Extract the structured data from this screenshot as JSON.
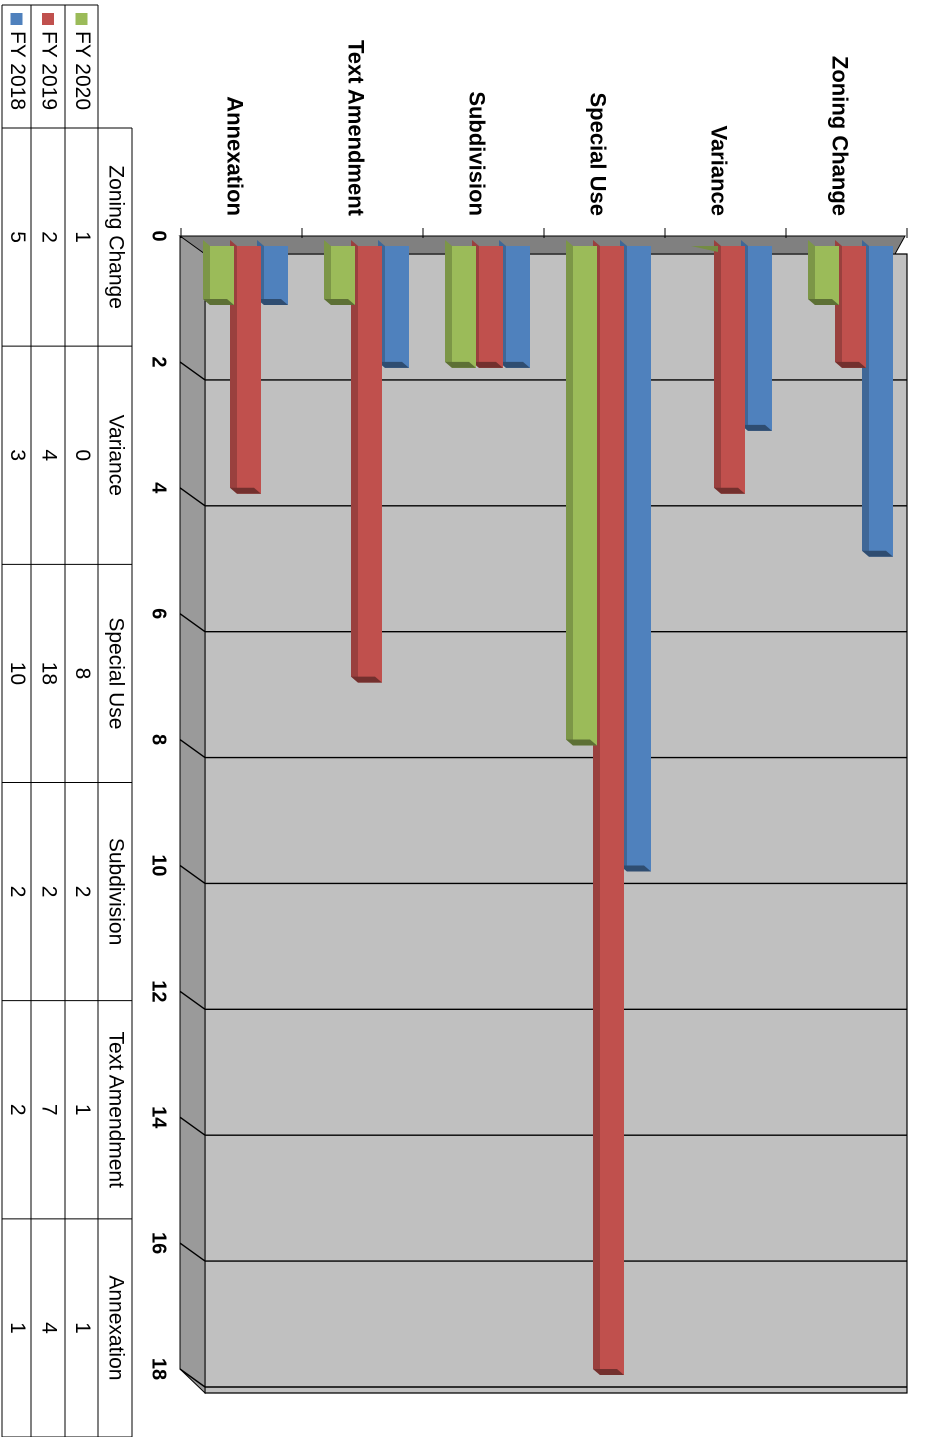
{
  "chart_data": {
    "type": "bar",
    "categories": [
      "Zoning Change",
      "Variance",
      "Special Use",
      "Subdivision",
      "Text Amendment",
      "Annexation"
    ],
    "series": [
      {
        "name": "FY 2018",
        "color": "#4f81bd",
        "values": [
          5,
          3,
          10,
          2,
          2,
          1
        ]
      },
      {
        "name": "FY 2019",
        "color": "#c0504d",
        "values": [
          2,
          4,
          18,
          2,
          7,
          4
        ]
      },
      {
        "name": "FY 2020",
        "color": "#9bbb59",
        "values": [
          1,
          0,
          8,
          2,
          1,
          1
        ]
      }
    ],
    "ylim": [
      0,
      18
    ],
    "yticks": [
      "0",
      "2",
      "4",
      "6",
      "8",
      "10",
      "12",
      "14",
      "16",
      "18"
    ],
    "grid": true,
    "three_d": true,
    "orientation": "rotated-90-clockwise",
    "legend_placement": "data-table",
    "data_table": true
  }
}
